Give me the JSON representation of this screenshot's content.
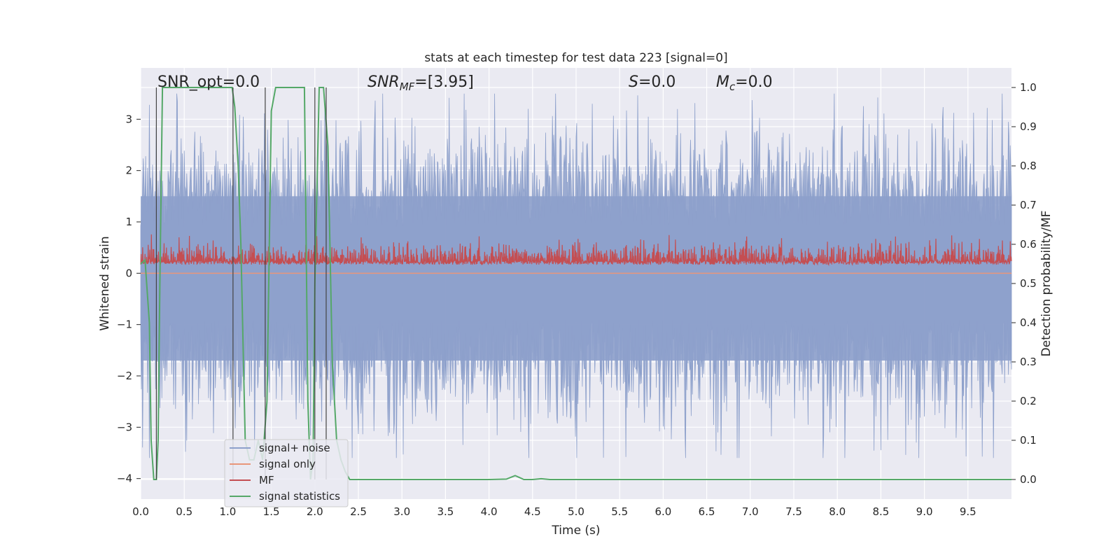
{
  "chart_data": {
    "type": "line",
    "title": "stats at each timestep for test data 223 [signal=0]",
    "xlabel": "Time (s)",
    "ylabel": "Whitened strain",
    "y2label": "Detection probability/MF",
    "xlim": [
      0,
      10
    ],
    "ylim": [
      -4.4,
      4.0
    ],
    "y2lim": [
      -0.05,
      1.05
    ],
    "x_ticks": [
      "0.0",
      "0.5",
      "1.0",
      "1.5",
      "2.0",
      "2.5",
      "3.0",
      "3.5",
      "4.0",
      "4.5",
      "5.0",
      "5.5",
      "6.0",
      "6.5",
      "7.0",
      "7.5",
      "8.0",
      "8.5",
      "9.0",
      "9.5"
    ],
    "y_ticks": [
      "3",
      "2",
      "1",
      "0",
      "−1",
      "−2",
      "−3",
      "−4"
    ],
    "y2_ticks": [
      "1.0",
      "0.9",
      "0.8",
      "0.7",
      "0.6",
      "0.5",
      "0.4",
      "0.3",
      "0.2",
      "0.1",
      "0.0"
    ],
    "grid": true,
    "legend_position": "lower-left",
    "annotations": {
      "snr_opt": "SNR_opt=0.0",
      "snr_mf_main": "SNR",
      "snr_mf_sub": "MF",
      "snr_mf_value": "=[3.95]",
      "s_var": "S",
      "s_value": "=0.0",
      "mc_var": "M",
      "mc_sub": "c",
      "mc_value": "=0.0"
    },
    "series": [
      {
        "name": "signal+ noise",
        "color": "#8da0cb",
        "axis": "left",
        "description_range": [
          -3.5,
          3.5
        ],
        "envelope_typical": 1.5
      },
      {
        "name": "signal only",
        "color": "#e9967a",
        "axis": "left",
        "constant": 0.0
      },
      {
        "name": "MF",
        "color": "#c44e52",
        "axis": "right",
        "baseline": 0.55,
        "range": [
          0.545,
          0.63
        ]
      },
      {
        "name": "signal statistics",
        "color": "#55a868",
        "axis": "right",
        "x": [
          0.0,
          0.05,
          0.1,
          0.12,
          0.15,
          0.18,
          0.2,
          0.22,
          0.25,
          0.3,
          0.5,
          0.8,
          1.05,
          1.08,
          1.12,
          1.15,
          1.18,
          1.2,
          1.25,
          1.3,
          1.35,
          1.4,
          1.45,
          1.5,
          1.55,
          1.6,
          1.8,
          1.88,
          1.9,
          1.92,
          1.95,
          1.98,
          2.0,
          2.05,
          2.1,
          2.15,
          2.2,
          2.25,
          2.3,
          2.35,
          2.4,
          2.5,
          3.0,
          4.0,
          4.2,
          4.3,
          4.35,
          4.4,
          4.5,
          4.6,
          4.7,
          5.0,
          6.0,
          7.0,
          8.0,
          9.0,
          10.0
        ],
        "values": [
          0.55,
          0.56,
          0.4,
          0.1,
          0.0,
          0.0,
          0.1,
          0.5,
          1.0,
          1.0,
          1.0,
          1.0,
          1.0,
          0.95,
          0.8,
          0.6,
          0.3,
          0.1,
          0.05,
          0.05,
          0.1,
          0.05,
          0.2,
          0.94,
          1.0,
          1.0,
          1.0,
          1.0,
          0.6,
          0.2,
          0.0,
          0.05,
          0.5,
          1.0,
          1.0,
          0.85,
          0.3,
          0.1,
          0.05,
          0.02,
          0.0,
          0.0,
          0.0,
          0.0,
          0.001,
          0.01,
          0.005,
          0.0,
          0.0,
          0.002,
          0.0,
          0.0,
          0.0,
          0.0,
          0.0,
          0.0,
          0.0
        ]
      }
    ],
    "vertical_markers": [
      0.18,
      1.06,
      1.43,
      2.0,
      2.13
    ]
  }
}
